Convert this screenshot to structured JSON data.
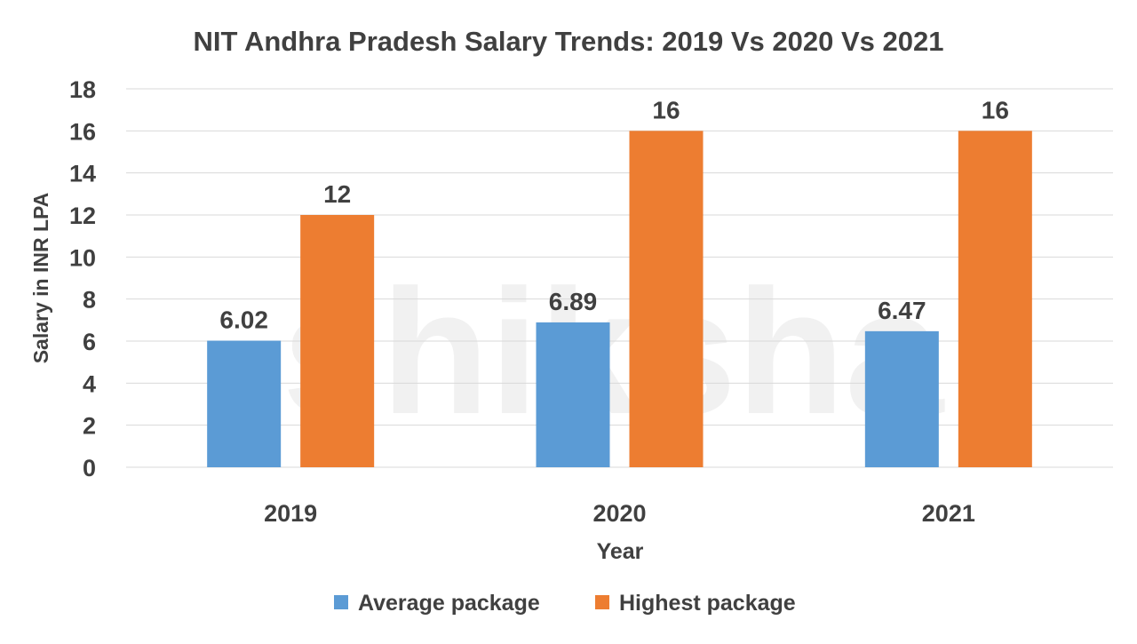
{
  "chart_data": {
    "type": "bar",
    "title": "NIT Andhra Pradesh Salary Trends: 2019 Vs 2020 Vs 2021",
    "xlabel": "Year",
    "ylabel": "Salary in INR LPA",
    "categories": [
      "2019",
      "2020",
      "2021"
    ],
    "series": [
      {
        "name": "Average package",
        "values": [
          6.02,
          6.89,
          6.47
        ],
        "labels": [
          "6.02",
          "6.89",
          "6.47"
        ],
        "color": "#5B9BD5"
      },
      {
        "name": "Highest package",
        "values": [
          12,
          16,
          16
        ],
        "labels": [
          "12",
          "16",
          "16"
        ],
        "color": "#ED7D31"
      }
    ],
    "ylim": [
      0,
      18
    ],
    "yticks": [
      "0",
      "2",
      "4",
      "6",
      "8",
      "10",
      "12",
      "14",
      "16",
      "18"
    ],
    "grid": true,
    "legend": "bottom",
    "watermark": "shiksha"
  }
}
